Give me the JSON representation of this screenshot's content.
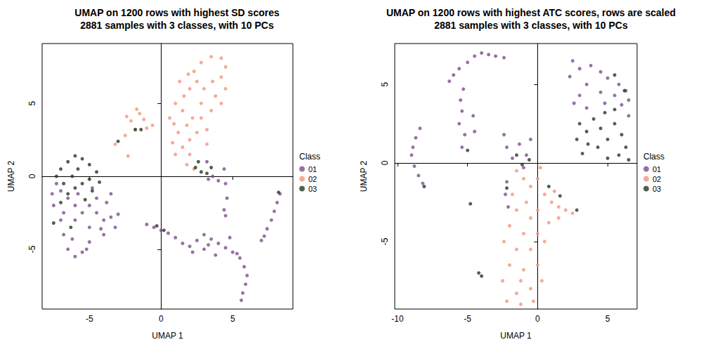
{
  "chart_data": [
    {
      "type": "scatter",
      "title": "UMAP on 1200 rows with highest SD scores",
      "subtitle": "2881 samples with 3 classes, with 10 PCs",
      "x_label": "UMAP 1",
      "y_label": "UMAP 2",
      "legend_title": "Class",
      "legend": "right",
      "grid": false,
      "marker": "circle",
      "xlim": [
        -8.3,
        9.2
      ],
      "xticks": [
        -5,
        0,
        5
      ],
      "ylim": [
        -9.1,
        9.1
      ],
      "yticks": [
        -5,
        0,
        5
      ],
      "series": [
        {
          "name": "01",
          "color": "#7E4E90",
          "values": [
            [
              -7,
              -1
            ],
            [
              -6.5,
              -1.5
            ],
            [
              -6,
              -2
            ],
            [
              -5.5,
              -2.5
            ],
            [
              -5,
              -2
            ],
            [
              -4.5,
              -2.5
            ],
            [
              -4,
              -3
            ],
            [
              -3.5,
              -2.8
            ],
            [
              -3.2,
              -3.5
            ],
            [
              -4,
              -4
            ],
            [
              -5,
              -4.5
            ],
            [
              -5.5,
              -5.2
            ],
            [
              -6,
              -5.5
            ],
            [
              -6.5,
              -5
            ],
            [
              -6.8,
              -4
            ],
            [
              -7,
              -3
            ],
            [
              -7.5,
              -2
            ],
            [
              -7.3,
              -0.5
            ],
            [
              -6,
              -3
            ],
            [
              -5,
              -3.5
            ],
            [
              -4.5,
              -1.5
            ],
            [
              -3.8,
              -1.8
            ],
            [
              -6.2,
              -4.3
            ],
            [
              -5.8,
              -1.2
            ],
            [
              -4.2,
              -3.6
            ],
            [
              -3,
              -2.6
            ],
            [
              -7.6,
              -1.2
            ],
            [
              -5.2,
              -5
            ],
            [
              -6.8,
              -2.5
            ],
            [
              -4.8,
              -0.8
            ],
            [
              -3.5,
              -1.2
            ],
            [
              -1,
              -3.3
            ],
            [
              -0.5,
              -3.5
            ],
            [
              0,
              -3.7
            ],
            [
              0.5,
              -3.9
            ],
            [
              1,
              -4.2
            ],
            [
              1.5,
              -4.6
            ],
            [
              2,
              -4.8
            ],
            [
              2.5,
              -4.4
            ],
            [
              3,
              -4
            ],
            [
              3.5,
              -4.3
            ],
            [
              4,
              -4.6
            ],
            [
              4.5,
              -4.9
            ],
            [
              3,
              -5
            ],
            [
              2.2,
              -5.2
            ],
            [
              3.8,
              -5.4
            ],
            [
              4.8,
              -4.2
            ],
            [
              3.3,
              -4.7
            ],
            [
              5,
              -5.2
            ],
            [
              5.5,
              -5.6
            ],
            [
              5.8,
              -6.2
            ],
            [
              6,
              -6.8
            ],
            [
              5.9,
              -7.4
            ],
            [
              5.7,
              -8
            ],
            [
              5.6,
              -8.5
            ],
            [
              5.3,
              -5.3
            ],
            [
              8.3,
              -1.2
            ],
            [
              8.1,
              -1.8
            ],
            [
              7.9,
              -2.4
            ],
            [
              7.7,
              -3
            ],
            [
              7.4,
              -3.6
            ],
            [
              7.2,
              -4.1
            ],
            [
              7,
              -4.4
            ],
            [
              4.4,
              0.5
            ],
            [
              4.5,
              -0.5
            ],
            [
              4.6,
              -1.5
            ],
            [
              4.4,
              -2.3
            ],
            [
              4.5,
              -2.7
            ],
            [
              3.3,
              -0.2
            ],
            [
              3.6,
              0
            ],
            [
              4,
              -0.3
            ],
            [
              3.2,
              1
            ]
          ]
        },
        {
          "name": "02",
          "color": "#F4957A",
          "values": [
            [
              1,
              1.5
            ],
            [
              1.5,
              2
            ],
            [
              2,
              2.5
            ],
            [
              2.5,
              3
            ],
            [
              1.2,
              3
            ],
            [
              1.8,
              3.5
            ],
            [
              2.2,
              4
            ],
            [
              1.5,
              4.5
            ],
            [
              1,
              5
            ],
            [
              1.6,
              5.5
            ],
            [
              2,
              6
            ],
            [
              2.5,
              6.5
            ],
            [
              2.3,
              7.2
            ],
            [
              2.8,
              7.8
            ],
            [
              3.5,
              8.2
            ],
            [
              4.2,
              8.1
            ],
            [
              4.5,
              7.5
            ],
            [
              4.2,
              6.8
            ],
            [
              3.6,
              6.5
            ],
            [
              3,
              6
            ],
            [
              3.8,
              5.5
            ],
            [
              4.2,
              5
            ],
            [
              3.5,
              4.5
            ],
            [
              2.8,
              4
            ],
            [
              3.2,
              3.2
            ],
            [
              2,
              1.5
            ],
            [
              1.8,
              0.8
            ],
            [
              2.3,
              0.5
            ],
            [
              0.6,
              4
            ],
            [
              0.8,
              2.3
            ],
            [
              1.3,
              6.5
            ],
            [
              2.8,
              5
            ],
            [
              3.2,
              2.2
            ],
            [
              4.5,
              6
            ],
            [
              1.9,
              7
            ],
            [
              0.9,
              3.6
            ],
            [
              -1.8,
              3.2
            ],
            [
              -2.1,
              3.8
            ],
            [
              -1.5,
              4.3
            ],
            [
              -1.2,
              3.9
            ],
            [
              -1.7,
              4.6
            ],
            [
              -1,
              3.3
            ],
            [
              -2.4,
              4.1
            ],
            [
              -2.5,
              2.8
            ],
            [
              -2.3,
              1.4
            ],
            [
              -3.2,
              2.2
            ],
            [
              -0.6,
              3.5
            ]
          ]
        },
        {
          "name": "03",
          "color": "#263826",
          "values": [
            [
              -7,
              0.5
            ],
            [
              -6.5,
              1
            ],
            [
              -6,
              1.4
            ],
            [
              -5.5,
              1.2
            ],
            [
              -5,
              0.8
            ],
            [
              -4.5,
              0.3
            ],
            [
              -6.2,
              0
            ],
            [
              -5.5,
              -0.5
            ],
            [
              -5,
              -0.2
            ],
            [
              -6.8,
              -0.5
            ],
            [
              -7.3,
              0
            ],
            [
              -4.8,
              -1
            ],
            [
              -5.8,
              0.5
            ],
            [
              -6.5,
              -1.2
            ],
            [
              -4.3,
              -0.4
            ],
            [
              -6,
              -0.8
            ],
            [
              -7,
              -1.8
            ],
            [
              -7.5,
              -3.2
            ],
            [
              -5.3,
              -1.6
            ],
            [
              -3,
              2.4
            ],
            [
              -1.8,
              3.2
            ],
            [
              -1.4,
              3.2
            ],
            [
              2.4,
              0.6
            ],
            [
              2.8,
              0.3
            ],
            [
              3.2,
              0.2
            ],
            [
              3.5,
              0.6
            ],
            [
              2.6,
              1
            ],
            [
              -0.3,
              -3.4
            ],
            [
              0.2,
              -3.7
            ],
            [
              8.2,
              -1.1
            ],
            [
              -6.3,
              -3.5
            ]
          ]
        }
      ]
    },
    {
      "type": "scatter",
      "title": "UMAP on 1200 rows with highest ATC scores, rows are scaled",
      "subtitle": "2881 samples with 3 classes, with 10 PCs",
      "x_label": "UMAP 1",
      "y_label": "UMAP 2",
      "legend_title": "Class",
      "legend": "right",
      "grid": false,
      "marker": "circle",
      "xlim": [
        -10.2,
        7.1
      ],
      "xticks": [
        -10,
        -5,
        0,
        5
      ],
      "ylim": [
        -9.3,
        7.6
      ],
      "yticks": [
        -5,
        0,
        5
      ],
      "series": [
        {
          "name": "01",
          "color": "#7E4E90",
          "values": [
            [
              -8.4,
              2.2
            ],
            [
              -8.7,
              1.6
            ],
            [
              -8.9,
              1
            ],
            [
              -9,
              0.5
            ],
            [
              -8.8,
              -0.2
            ],
            [
              -8.5,
              -0.8
            ],
            [
              -8.2,
              -1.3
            ],
            [
              -6.3,
              5.2
            ],
            [
              -6,
              5.6
            ],
            [
              -5.6,
              6
            ],
            [
              -5,
              6.4
            ],
            [
              -4.5,
              6.8
            ],
            [
              -4,
              7
            ],
            [
              -3.5,
              6.9
            ],
            [
              -3,
              6.8
            ],
            [
              -2.4,
              6.7
            ],
            [
              -5.3,
              4.7
            ],
            [
              -5.5,
              4
            ],
            [
              -5.4,
              3.3
            ],
            [
              -5.6,
              2.5
            ],
            [
              -5.2,
              1.8
            ],
            [
              -5.4,
              1
            ],
            [
              -4.6,
              3
            ],
            [
              -4.5,
              2
            ],
            [
              2.5,
              6.5
            ],
            [
              3,
              6
            ],
            [
              3.8,
              6.2
            ],
            [
              4.5,
              5.8
            ],
            [
              5,
              5.4
            ],
            [
              5.8,
              5
            ],
            [
              6.3,
              4.6
            ],
            [
              6.5,
              4
            ],
            [
              6,
              3.7
            ],
            [
              4.5,
              4.5
            ],
            [
              3.5,
              5
            ],
            [
              3,
              4.3
            ],
            [
              2.6,
              3.8
            ],
            [
              3.5,
              3.5
            ],
            [
              4.8,
              3.8
            ],
            [
              5.5,
              4.3
            ],
            [
              6.5,
              3
            ],
            [
              2.3,
              5.5
            ],
            [
              -2.4,
              1.8
            ],
            [
              -2.2,
              1
            ],
            [
              -1.8,
              0.3
            ],
            [
              -1.3,
              1.2
            ],
            [
              -0.8,
              0.5
            ],
            [
              -1,
              -0.3
            ],
            [
              -2.2,
              -1.2
            ],
            [
              -2.3,
              -2
            ],
            [
              -2.1,
              -2.8
            ],
            [
              -0.5,
              1.5
            ]
          ]
        },
        {
          "name": "02",
          "color": "#F4957A",
          "values": [
            [
              -1.5,
              -0.5
            ],
            [
              -1,
              -1
            ],
            [
              -0.5,
              -1.5
            ],
            [
              0,
              -1
            ],
            [
              0.5,
              -2
            ],
            [
              1,
              -2.5
            ],
            [
              1.5,
              -2.8
            ],
            [
              2,
              -3
            ],
            [
              2.5,
              -3.2
            ],
            [
              0,
              -3
            ],
            [
              -0.5,
              -3.5
            ],
            [
              -1.5,
              -3
            ],
            [
              -2,
              -4
            ],
            [
              -1,
              -4.5
            ],
            [
              0,
              -4.5
            ],
            [
              0.5,
              -5
            ],
            [
              -0.5,
              -5.5
            ],
            [
              -1.5,
              -5.5
            ],
            [
              -2,
              -6.5
            ],
            [
              -1,
              -6.8
            ],
            [
              0,
              -6.5
            ],
            [
              0.3,
              -7.5
            ],
            [
              -0.5,
              -8
            ],
            [
              -1.5,
              -8.3
            ],
            [
              -2.2,
              -8.8
            ],
            [
              -1.2,
              -9
            ],
            [
              -0.3,
              -8.8
            ],
            [
              -2.5,
              -7.5
            ],
            [
              -1.8,
              -2
            ],
            [
              -0.8,
              -2.5
            ],
            [
              0.8,
              -3.8
            ],
            [
              1.5,
              -3.5
            ],
            [
              -2.4,
              -5
            ],
            [
              0.2,
              -0.3
            ],
            [
              -1.2,
              -7.5
            ],
            [
              1.2,
              -1.8
            ]
          ]
        },
        {
          "name": "03",
          "color": "#263826",
          "values": [
            [
              3,
              2.5
            ],
            [
              3.5,
              2
            ],
            [
              4,
              2.8
            ],
            [
              4.5,
              2.2
            ],
            [
              5,
              1.5
            ],
            [
              5.5,
              2.5
            ],
            [
              6,
              1.8
            ],
            [
              6.3,
              1
            ],
            [
              5.8,
              0.5
            ],
            [
              5,
              0.3
            ],
            [
              4.3,
              1
            ],
            [
              3.6,
              1.2
            ],
            [
              4.8,
              3.2
            ],
            [
              5.5,
              3.4
            ],
            [
              3.2,
              0.6
            ],
            [
              6.5,
              0.2
            ],
            [
              2.8,
              1.5
            ],
            [
              -1.1,
              -0.1
            ],
            [
              -0.6,
              0.2
            ],
            [
              -1.5,
              0.5
            ],
            [
              -4.2,
              -7
            ],
            [
              -4,
              -7.2
            ],
            [
              -8.1,
              -1.5
            ],
            [
              -5,
              0.8
            ],
            [
              1.6,
              -2.1
            ],
            [
              2.8,
              -3
            ],
            [
              5.5,
              5.6
            ],
            [
              6.2,
              4.6
            ],
            [
              -4.8,
              -2.6
            ],
            [
              -2.2,
              -1.6
            ],
            [
              0.8,
              -1.5
            ]
          ]
        }
      ]
    }
  ]
}
